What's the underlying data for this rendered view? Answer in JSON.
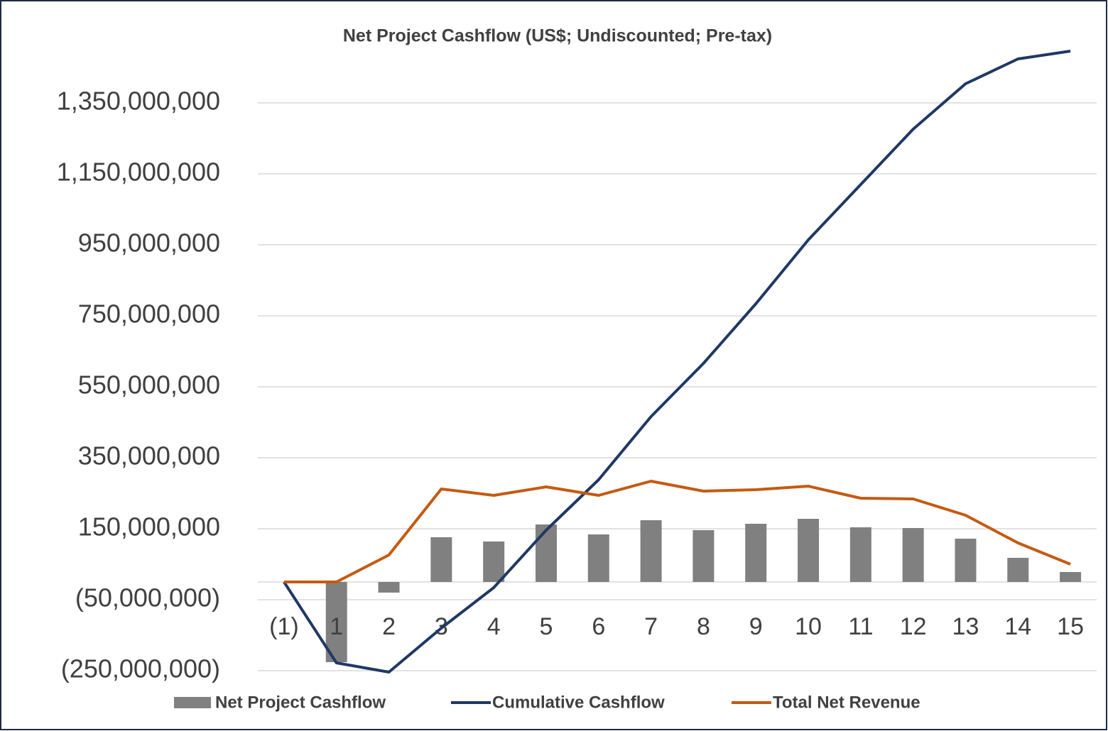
{
  "chart_data": {
    "type": "bar-line",
    "title": "Net Project Cashflow (US$; Undiscounted; Pre-tax)",
    "categories": [
      "(1)",
      "1",
      "2",
      "3",
      "4",
      "5",
      "6",
      "7",
      "8",
      "9",
      "10",
      "11",
      "12",
      "13",
      "14",
      "15"
    ],
    "series": [
      {
        "name": "Net Project Cashflow",
        "type": "bar",
        "color": "#808080",
        "values": [
          0,
          -226000000,
          -30000000,
          126000000,
          114000000,
          162000000,
          134000000,
          174000000,
          146000000,
          164000000,
          178000000,
          154000000,
          152000000,
          122000000,
          68000000,
          28000000
        ]
      },
      {
        "name": "Cumulative Cashflow",
        "type": "line",
        "color": "#203864",
        "values": [
          0,
          -228000000,
          -254000000,
          -130000000,
          -16000000,
          146000000,
          288000000,
          466000000,
          616000000,
          784000000,
          964000000,
          1120000000,
          1276000000,
          1404000000,
          1474000000,
          1496000000
        ]
      },
      {
        "name": "Total Net Revenue",
        "type": "line",
        "color": "#c55a11",
        "values": [
          0,
          0,
          76000000,
          262000000,
          244000000,
          268000000,
          244000000,
          284000000,
          256000000,
          260000000,
          270000000,
          236000000,
          234000000,
          188000000,
          110000000,
          50000000
        ]
      }
    ],
    "ylim": [
      -250000000,
      1500000000
    ],
    "yticks": [
      {
        "value": -250000000,
        "label": "(250,000,000)"
      },
      {
        "value": -50000000,
        "label": "(50,000,000)"
      },
      {
        "value": 150000000,
        "label": "150,000,000"
      },
      {
        "value": 350000000,
        "label": "350,000,000"
      },
      {
        "value": 550000000,
        "label": "550,000,000"
      },
      {
        "value": 750000000,
        "label": "750,000,000"
      },
      {
        "value": 950000000,
        "label": "950,000,000"
      },
      {
        "value": 1150000000,
        "label": "1,150,000,000"
      },
      {
        "value": 1350000000,
        "label": "1,350,000,000"
      }
    ],
    "grid": true,
    "legend": "bottom"
  }
}
